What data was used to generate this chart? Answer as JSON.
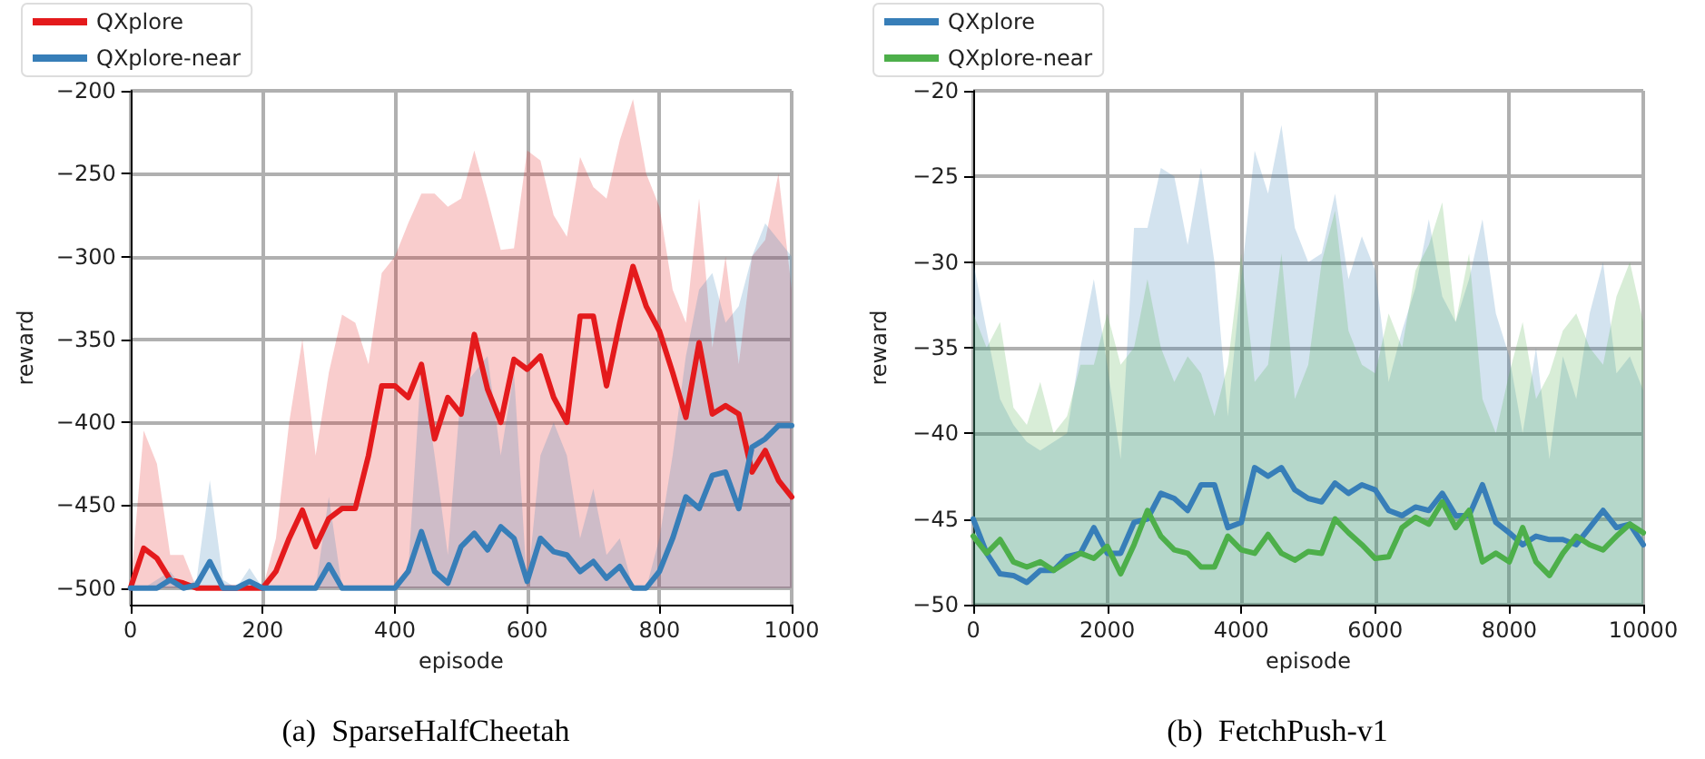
{
  "chart_data": [
    {
      "type": "line",
      "title": "(a)  SparseHalfCheetah",
      "xlabel": "episode",
      "ylabel": "reward",
      "xlim": [
        0,
        1000
      ],
      "xticks": [
        0,
        200,
        400,
        600,
        800,
        1000
      ],
      "ylim": [
        -510,
        -200
      ],
      "yticks": [
        -500,
        -450,
        -400,
        -350,
        -300,
        -250,
        -200
      ],
      "grid": true,
      "legend": "top left",
      "marker": "none",
      "line_style": "solid",
      "x": [
        0,
        20,
        40,
        60,
        80,
        100,
        120,
        140,
        160,
        180,
        200,
        220,
        240,
        260,
        280,
        300,
        320,
        340,
        360,
        380,
        400,
        420,
        440,
        460,
        480,
        500,
        520,
        540,
        560,
        580,
        600,
        620,
        640,
        660,
        680,
        700,
        720,
        740,
        760,
        780,
        800,
        820,
        840,
        860,
        880,
        900,
        920,
        940,
        960,
        980,
        1000
      ],
      "series": [
        {
          "name": "QXplore",
          "color": "#e41a1c",
          "values": [
            -500,
            -476,
            -482,
            -495,
            -497,
            -500,
            -500,
            -500,
            -500,
            -500,
            -500,
            -490,
            -470,
            -453,
            -475,
            -458,
            -452,
            -452,
            -420,
            -378,
            -378,
            -385,
            -365,
            -410,
            -385,
            -395,
            -347,
            -380,
            -400,
            -362,
            -368,
            -360,
            -385,
            -400,
            -336,
            -336,
            -378,
            -340,
            -306,
            -330,
            -345,
            -370,
            -397,
            -352,
            -395,
            -390,
            -395,
            -430,
            -417,
            -435,
            -445
          ],
          "upper": [
            -500,
            -405,
            -425,
            -480,
            -480,
            -500,
            -500,
            -500,
            -500,
            -500,
            -500,
            -470,
            -400,
            -350,
            -420,
            -370,
            -335,
            -340,
            -365,
            -310,
            -300,
            -280,
            -262,
            -262,
            -270,
            -265,
            -236,
            -265,
            -296,
            -295,
            -236,
            -242,
            -275,
            -288,
            -240,
            -258,
            -265,
            -230,
            -205,
            -250,
            -270,
            -320,
            -340,
            -265,
            -355,
            -300,
            -365,
            -300,
            -290,
            -250,
            -320
          ],
          "lower": [
            -500,
            -500,
            -500,
            -500,
            -500,
            -500,
            -500,
            -500,
            -500,
            -500,
            -500,
            -500,
            -500,
            -500,
            -500,
            -500,
            -500,
            -500,
            -500,
            -500,
            -500,
            -500,
            -500,
            -500,
            -500,
            -500,
            -500,
            -500,
            -500,
            -500,
            -500,
            -500,
            -500,
            -500,
            -500,
            -500,
            -500,
            -500,
            -500,
            -500,
            -500,
            -500,
            -500,
            -500,
            -500,
            -500,
            -500,
            -500,
            -500,
            -500,
            -500
          ]
        },
        {
          "name": "QXplore-near",
          "color": "#377eb8",
          "values": [
            -500,
            -500,
            -500,
            -495,
            -500,
            -498,
            -484,
            -500,
            -500,
            -496,
            -500,
            -500,
            -500,
            -500,
            -500,
            -486,
            -500,
            -500,
            -500,
            -500,
            -500,
            -490,
            -466,
            -490,
            -497,
            -475,
            -467,
            -477,
            -463,
            -470,
            -496,
            -470,
            -478,
            -480,
            -490,
            -484,
            -494,
            -487,
            -500,
            -500,
            -490,
            -470,
            -445,
            -452,
            -432,
            -430,
            -452,
            -415,
            -410,
            -402,
            -402
          ],
          "upper": [
            -500,
            -500,
            -495,
            -490,
            -500,
            -495,
            -435,
            -495,
            -500,
            -488,
            -500,
            -500,
            -500,
            -500,
            -500,
            -445,
            -500,
            -500,
            -500,
            -500,
            -500,
            -490,
            -365,
            -420,
            -480,
            -380,
            -370,
            -360,
            -420,
            -370,
            -500,
            -420,
            -400,
            -420,
            -470,
            -440,
            -480,
            -470,
            -500,
            -500,
            -470,
            -420,
            -360,
            -320,
            -310,
            -340,
            -330,
            -300,
            -280,
            -290,
            -300
          ],
          "lower": [
            -500,
            -500,
            -500,
            -500,
            -500,
            -500,
            -500,
            -500,
            -500,
            -500,
            -500,
            -500,
            -500,
            -500,
            -500,
            -500,
            -500,
            -500,
            -500,
            -500,
            -500,
            -500,
            -500,
            -500,
            -500,
            -500,
            -500,
            -500,
            -500,
            -500,
            -500,
            -500,
            -500,
            -500,
            -500,
            -500,
            -500,
            -500,
            -500,
            -500,
            -500,
            -500,
            -500,
            -500,
            -500,
            -500,
            -500,
            -500,
            -500,
            -500,
            -500
          ]
        }
      ]
    },
    {
      "type": "line",
      "title": "(b)  FetchPush-v1",
      "xlabel": "episode",
      "ylabel": "reward",
      "xlim": [
        0,
        10000
      ],
      "xticks": [
        0,
        2000,
        4000,
        6000,
        8000,
        10000
      ],
      "ylim": [
        -50,
        -20
      ],
      "yticks": [
        -50,
        -45,
        -40,
        -35,
        -30,
        -25,
        -20
      ],
      "grid": true,
      "legend": "top left",
      "marker": "none",
      "line_style": "solid",
      "x": [
        0,
        200,
        400,
        600,
        800,
        1000,
        1200,
        1400,
        1600,
        1800,
        2000,
        2200,
        2400,
        2600,
        2800,
        3000,
        3200,
        3400,
        3600,
        3800,
        4000,
        4200,
        4400,
        4600,
        4800,
        5000,
        5200,
        5400,
        5600,
        5800,
        6000,
        6200,
        6400,
        6600,
        6800,
        7000,
        7200,
        7400,
        7600,
        7800,
        8000,
        8200,
        8400,
        8600,
        8800,
        9000,
        9200,
        9400,
        9600,
        9800,
        10000
      ],
      "series": [
        {
          "name": "QXplore",
          "color": "#377eb8",
          "values": [
            -45,
            -47,
            -48.2,
            -48.3,
            -48.7,
            -48,
            -48,
            -47.2,
            -47,
            -45.5,
            -47,
            -47,
            -45.2,
            -45,
            -43.5,
            -43.8,
            -44.5,
            -43,
            -43,
            -45.5,
            -45.2,
            -42,
            -42.5,
            -42,
            -43.3,
            -43.8,
            -44,
            -42.9,
            -43.5,
            -43,
            -43.3,
            -44.5,
            -44.8,
            -44.3,
            -44.5,
            -43.5,
            -44.8,
            -44.8,
            -43,
            -45.2,
            -45.8,
            -46.5,
            -46,
            -46.2,
            -46.2,
            -46.5,
            -45.5,
            -44.5,
            -45.5,
            -45.3,
            -46.5
          ],
          "upper": [
            -30,
            -34,
            -38,
            -39.5,
            -40.5,
            -41,
            -40.5,
            -40,
            -35,
            -31,
            -36,
            -41.5,
            -28,
            -28,
            -24.5,
            -25,
            -29,
            -24.5,
            -30,
            -39,
            -31,
            -23.5,
            -26,
            -22,
            -28,
            -30,
            -29.5,
            -26,
            -31,
            -28.5,
            -30.5,
            -37,
            -34,
            -31.5,
            -27.5,
            -32,
            -33.5,
            -31,
            -27.5,
            -33,
            -35.5,
            -40,
            -35,
            -41.5,
            -35.5,
            -38,
            -33,
            -30,
            -36.5,
            -35.5,
            -37.5
          ],
          "lower": [
            -50,
            -50,
            -50,
            -50,
            -50,
            -50,
            -50,
            -50,
            -50,
            -50,
            -50,
            -50,
            -50,
            -50,
            -50,
            -50,
            -50,
            -50,
            -50,
            -50,
            -50,
            -50,
            -50,
            -50,
            -50,
            -50,
            -50,
            -50,
            -50,
            -50,
            -50,
            -50,
            -50,
            -50,
            -50,
            -50,
            -50,
            -50,
            -50,
            -50,
            -50,
            -50,
            -50,
            -50,
            -50,
            -50,
            -50,
            -50,
            -50,
            -50,
            -50
          ]
        },
        {
          "name": "QXplore-near",
          "color": "#4daf4a",
          "values": [
            -46,
            -47,
            -46.2,
            -47.5,
            -47.8,
            -47.5,
            -48,
            -47.5,
            -47,
            -47.3,
            -46.6,
            -48.2,
            -46.5,
            -44.5,
            -46,
            -46.8,
            -47,
            -47.8,
            -47.8,
            -46,
            -46.8,
            -47,
            -45.9,
            -47,
            -47.4,
            -46.9,
            -47,
            -45,
            -45.8,
            -46.5,
            -47.3,
            -47.2,
            -45.5,
            -44.9,
            -45.3,
            -44,
            -45.5,
            -44.5,
            -47.5,
            -47,
            -47.5,
            -45.5,
            -47.5,
            -48.3,
            -47,
            -46,
            -46.5,
            -46.8,
            -46,
            -45.3,
            -45.8
          ],
          "upper": [
            -33,
            -35,
            -33.5,
            -38.5,
            -39.5,
            -37,
            -40,
            -39,
            -36,
            -36,
            -33,
            -36,
            -35,
            -31,
            -35,
            -37,
            -35.5,
            -36.5,
            -39,
            -36,
            -29.5,
            -37,
            -36,
            -29.5,
            -38,
            -36,
            -30,
            -27,
            -34,
            -36,
            -36.5,
            -33,
            -35,
            -30.5,
            -29,
            -26.5,
            -33.5,
            -29.5,
            -38,
            -40,
            -36.5,
            -33.5,
            -38,
            -36.5,
            -34,
            -33,
            -35,
            -36,
            -32,
            -30,
            -33.5
          ],
          "lower": [
            -50,
            -50,
            -50,
            -50,
            -50,
            -50,
            -50,
            -50,
            -50,
            -50,
            -50,
            -50,
            -50,
            -50,
            -50,
            -50,
            -50,
            -50,
            -50,
            -50,
            -50,
            -50,
            -50,
            -50,
            -50,
            -50,
            -50,
            -50,
            -50,
            -50,
            -50,
            -50,
            -50,
            -50,
            -50,
            -50,
            -50,
            -50,
            -50,
            -50,
            -50,
            -50,
            -50,
            -50,
            -50,
            -50,
            -50,
            -50,
            -50,
            -50,
            -50
          ]
        }
      ]
    }
  ]
}
